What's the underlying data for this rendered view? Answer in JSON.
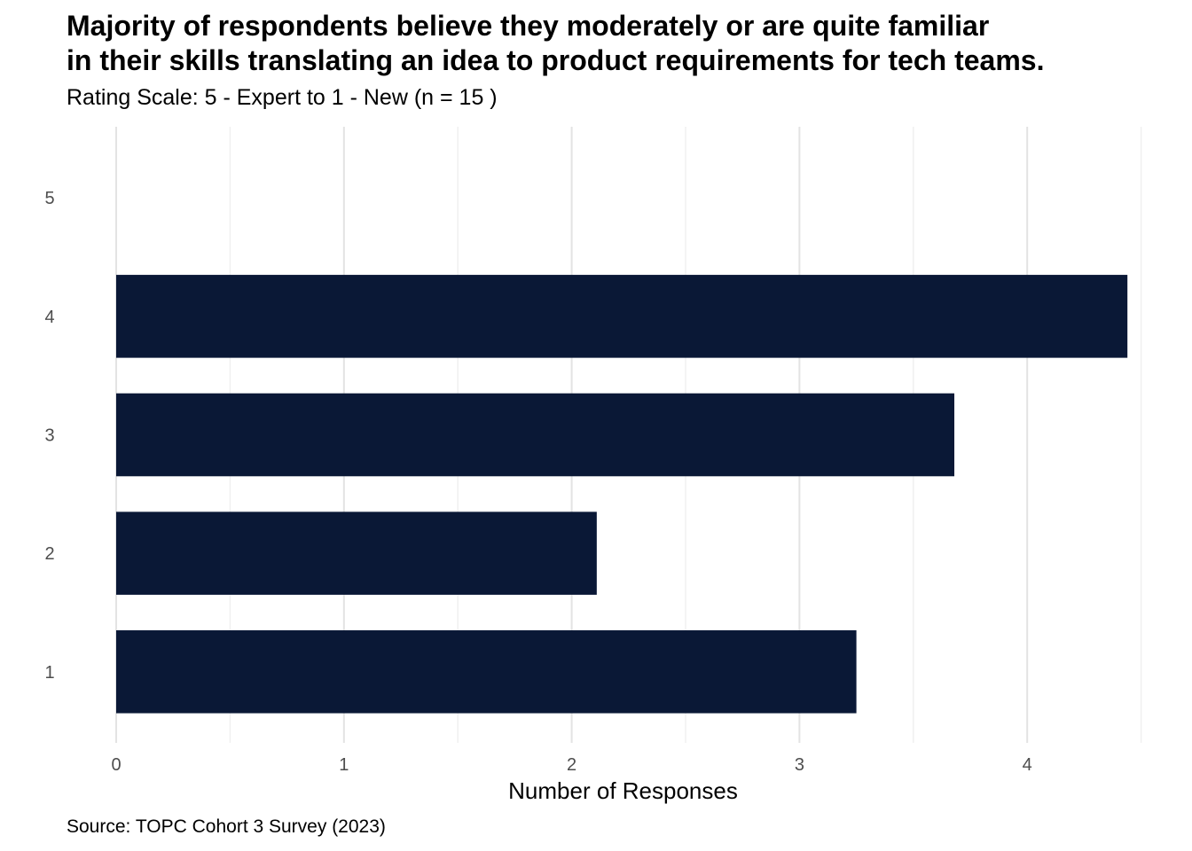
{
  "chart_data": {
    "type": "bar",
    "orientation": "horizontal",
    "title": "Majority of respondents believe they moderately or are quite familiar\nin their skills translating an idea to product requirements for tech teams.",
    "subtitle": "Rating Scale: 5 - Expert to 1 - New (n = 15 )",
    "xlabel": "Number of Responses",
    "ylabel": "",
    "caption": "Source: TOPC Cohort 3 Survey (2023)",
    "categories": [
      "1",
      "2",
      "3",
      "4",
      "5"
    ],
    "values": [
      3.25,
      2.11,
      3.68,
      4.44,
      0
    ],
    "xlim": [
      0,
      4.5
    ],
    "xticks": [
      "0",
      "1",
      "2",
      "3",
      "4"
    ],
    "grid": true,
    "legend": "none",
    "bar_color": "#0a1836"
  }
}
